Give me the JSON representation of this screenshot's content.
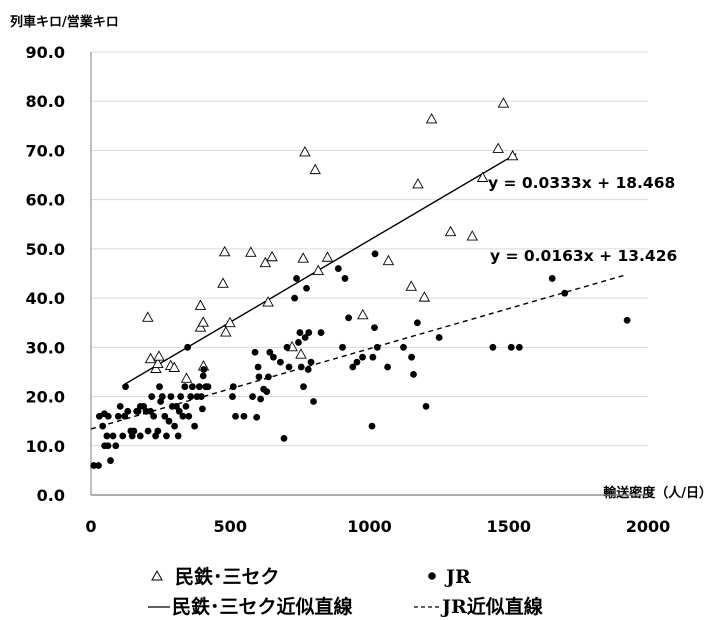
{
  "chart_data": {
    "type": "scatter",
    "ylabel": "列車キロ/営業キロ",
    "xlabel": "輸送密度（人/日）",
    "xlim": [
      0,
      2000
    ],
    "ylim": [
      0,
      90
    ],
    "x_ticks": [
      "0",
      "500",
      "1000",
      "1500",
      "2000"
    ],
    "y_ticks": [
      "0.0",
      "10.0",
      "20.0",
      "30.0",
      "40.0",
      "50.0",
      "60.0",
      "70.0",
      "80.0",
      "90.0"
    ],
    "grid": "horizontal",
    "series": [
      {
        "name": "民鉄･三セク",
        "marker": "triangle-open",
        "color": "#000000",
        "points": [
          [
            204,
            36.0
          ],
          [
            214,
            27.6
          ],
          [
            233,
            25.6
          ],
          [
            240,
            26.6
          ],
          [
            244,
            28.1
          ],
          [
            286,
            26.2
          ],
          [
            299,
            25.8
          ],
          [
            343,
            23.6
          ],
          [
            393,
            34.0
          ],
          [
            393,
            38.4
          ],
          [
            403,
            35.0
          ],
          [
            404,
            26.1
          ],
          [
            474,
            42.9
          ],
          [
            480,
            49.3
          ],
          [
            484,
            33.0
          ],
          [
            499,
            34.9
          ],
          [
            574,
            49.2
          ],
          [
            626,
            47.1
          ],
          [
            636,
            39.1
          ],
          [
            650,
            48.3
          ],
          [
            722,
            30.0
          ],
          [
            754,
            28.5
          ],
          [
            762,
            48.0
          ],
          [
            768,
            69.6
          ],
          [
            805,
            66.0
          ],
          [
            816,
            45.5
          ],
          [
            849,
            48.2
          ],
          [
            976,
            36.5
          ],
          [
            1068,
            47.5
          ],
          [
            1150,
            42.3
          ],
          [
            1174,
            63.1
          ],
          [
            1197,
            40.1
          ],
          [
            1223,
            76.3
          ],
          [
            1291,
            53.4
          ],
          [
            1369,
            52.5
          ],
          [
            1406,
            64.4
          ],
          [
            1462,
            70.3
          ],
          [
            1481,
            79.5
          ],
          [
            1514,
            68.8
          ]
        ]
      },
      {
        "name": "JR",
        "marker": "circle-filled",
        "color": "#000000",
        "points": [
          [
            10,
            6.0
          ],
          [
            27,
            6.0
          ],
          [
            30,
            16.0
          ],
          [
            42,
            14.0
          ],
          [
            48,
            16.5
          ],
          [
            49,
            10.0
          ],
          [
            57,
            12.0
          ],
          [
            61,
            10.0
          ],
          [
            62,
            16.0
          ],
          [
            70,
            7.0
          ],
          [
            79,
            12.0
          ],
          [
            89,
            10.0
          ],
          [
            98,
            16.0
          ],
          [
            105,
            18.0
          ],
          [
            114,
            12.0
          ],
          [
            121,
            16.0
          ],
          [
            124,
            22.0
          ],
          [
            132,
            17.0
          ],
          [
            143,
            13.0
          ],
          [
            148,
            12.0
          ],
          [
            154,
            13.0
          ],
          [
            164,
            17.0
          ],
          [
            169,
            17.0
          ],
          [
            177,
            12.0
          ],
          [
            177,
            18.0
          ],
          [
            189,
            18.0
          ],
          [
            198,
            17.0
          ],
          [
            205,
            13.0
          ],
          [
            214,
            17.0
          ],
          [
            218,
            20.0
          ],
          [
            225,
            16.0
          ],
          [
            232,
            12.0
          ],
          [
            240,
            13.0
          ],
          [
            246,
            22.0
          ],
          [
            250,
            19.0
          ],
          [
            256,
            20.0
          ],
          [
            265,
            16.0
          ],
          [
            271,
            12.0
          ],
          [
            280,
            15.0
          ],
          [
            287,
            20.0
          ],
          [
            292,
            18.0
          ],
          [
            300,
            14.0
          ],
          [
            307,
            18.0
          ],
          [
            313,
            12.0
          ],
          [
            317,
            17.0
          ],
          [
            322,
            20.0
          ],
          [
            330,
            16.0
          ],
          [
            337,
            22.0
          ],
          [
            341,
            18.0
          ],
          [
            347,
            30.0
          ],
          [
            351,
            16.0
          ],
          [
            358,
            20.0
          ],
          [
            364,
            22.0
          ],
          [
            372,
            14.0
          ],
          [
            381,
            20.0
          ],
          [
            389,
            22.0
          ],
          [
            396,
            20.0
          ],
          [
            400,
            17.5
          ],
          [
            403,
            24.2
          ],
          [
            405,
            25.5
          ],
          [
            412,
            22.0
          ],
          [
            420,
            22.0
          ],
          [
            508,
            20.0
          ],
          [
            511,
            22.0
          ],
          [
            519,
            16.0
          ],
          [
            549,
            16.0
          ],
          [
            580,
            20.0
          ],
          [
            589,
            29.0
          ],
          [
            595,
            15.8
          ],
          [
            600,
            26.0
          ],
          [
            603,
            24.0
          ],
          [
            609,
            19.5
          ],
          [
            620,
            21.5
          ],
          [
            631,
            21.0
          ],
          [
            637,
            24.0
          ],
          [
            642,
            29.0
          ],
          [
            655,
            28.0
          ],
          [
            680,
            27.0
          ],
          [
            693,
            11.5
          ],
          [
            704,
            30.0
          ],
          [
            711,
            26.0
          ],
          [
            731,
            40.0
          ],
          [
            738,
            44.0
          ],
          [
            745,
            31.0
          ],
          [
            750,
            33.0
          ],
          [
            755,
            26.0
          ],
          [
            763,
            22.0
          ],
          [
            769,
            32.0
          ],
          [
            774,
            42.0
          ],
          [
            780,
            25.5
          ],
          [
            782,
            33.0
          ],
          [
            790,
            27.0
          ],
          [
            799,
            19.0
          ],
          [
            826,
            33.0
          ],
          [
            888,
            46.0
          ],
          [
            903,
            30.0
          ],
          [
            912,
            44.0
          ],
          [
            925,
            36.0
          ],
          [
            940,
            26.0
          ],
          [
            955,
            27.0
          ],
          [
            975,
            28.0
          ],
          [
            1009,
            14.0
          ],
          [
            1012,
            28.0
          ],
          [
            1018,
            34.0
          ],
          [
            1020,
            49.0
          ],
          [
            1028,
            30.0
          ],
          [
            1065,
            26.0
          ],
          [
            1122,
            30.0
          ],
          [
            1151,
            28.0
          ],
          [
            1158,
            24.5
          ],
          [
            1172,
            35.0
          ],
          [
            1203,
            18.0
          ],
          [
            1250,
            32.0
          ],
          [
            1443,
            30.0
          ],
          [
            1509,
            30.0
          ],
          [
            1538,
            30.0
          ],
          [
            1656,
            44.0
          ],
          [
            1701,
            41.0
          ],
          [
            1925,
            35.5
          ]
        ]
      }
    ],
    "trendlines": [
      {
        "series": "民鉄･三セク",
        "equation": "y = 0.0333x + 18.468",
        "slope": 0.0333,
        "intercept": 18.468,
        "x_range": [
          124,
          1527
        ],
        "style": "solid"
      },
      {
        "series": "JR",
        "equation": "y = 0.0163x + 13.426",
        "slope": 0.0163,
        "intercept": 13.426,
        "x_range": [
          0,
          1925
        ],
        "style": "dashed"
      }
    ],
    "legend": {
      "placement": "bottom",
      "items": [
        {
          "label": "民鉄･三セク",
          "symbol": "triangle-open"
        },
        {
          "label": "JR",
          "symbol": "circle-filled"
        },
        {
          "label": "民鉄･三セク近似直線",
          "symbol": "solid-line"
        },
        {
          "label": "JR近似直線",
          "symbol": "dashed-line"
        }
      ]
    }
  }
}
